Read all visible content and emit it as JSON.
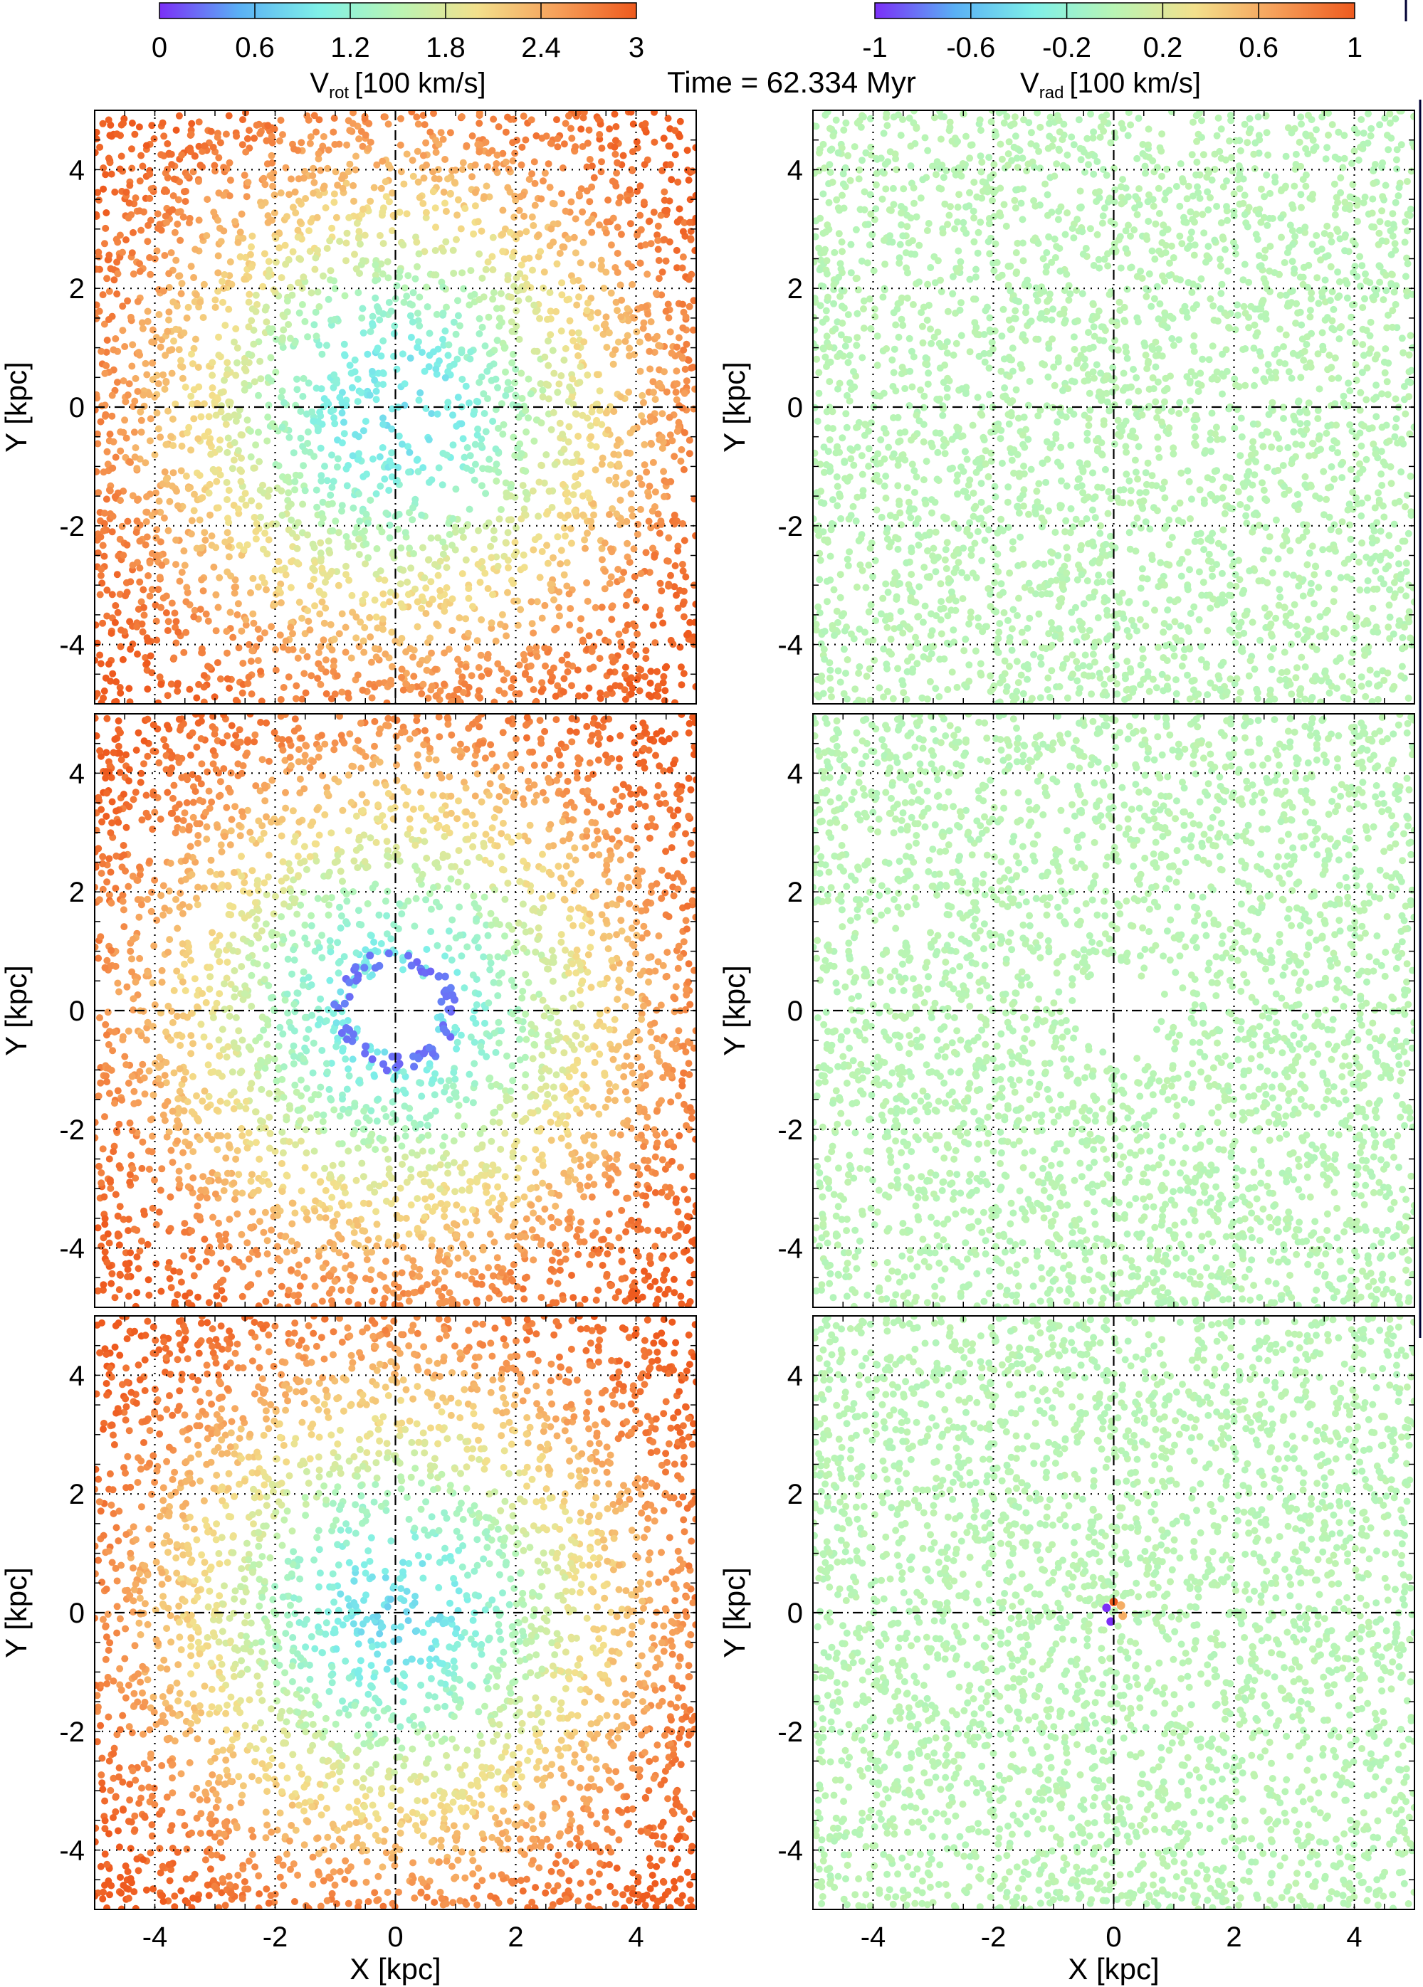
{
  "header": {
    "time_label": "Time = 62.334 Myr"
  },
  "colorbars": [
    {
      "label_main": "V",
      "label_sub": "rot",
      "label_unit": "[100 km/s]",
      "min": 0,
      "max": 3,
      "ticks": [
        "0",
        "0.6",
        "1.2",
        "1.8",
        "2.4",
        "3"
      ],
      "colors": [
        "#7b2ff7",
        "#5ab0f5",
        "#7ff0e8",
        "#b9f5b4",
        "#f3e08c",
        "#f6a05a",
        "#ee5a1e"
      ]
    },
    {
      "label_main": "V",
      "label_sub": "rad",
      "label_unit": "[100 km/s]",
      "min": -1,
      "max": 1,
      "ticks": [
        "-1",
        "-0.6",
        "-0.2",
        "0.2",
        "0.6",
        "1"
      ],
      "colors": [
        "#7b2ff7",
        "#5ab0f5",
        "#7ff0e8",
        "#b9f5b4",
        "#f3e08c",
        "#f6a05a",
        "#ee5a1e"
      ]
    }
  ],
  "axes": {
    "xlabel": "X [kpc]",
    "ylabel": "Y [kpc]",
    "xlim": [
      -5,
      5
    ],
    "ylim": [
      -5,
      5
    ],
    "xticks": [
      "-4",
      "-2",
      "0",
      "2",
      "4"
    ],
    "yticks": [
      "4",
      "2",
      "0",
      "-2",
      "-4"
    ],
    "grid": true
  },
  "chart_data": [
    {
      "type": "scatter",
      "panel": "row1-left",
      "quantity": "Vrot",
      "x_range": [
        -5,
        5
      ],
      "y_range": [
        -5,
        5
      ],
      "description_values": {
        "radius_kpc": [
          0,
          1,
          2,
          3,
          4,
          5,
          6.5
        ],
        "vrot_100kms": [
          0.9,
          1.0,
          1.4,
          1.9,
          2.3,
          2.7,
          3.0
        ]
      }
    },
    {
      "type": "scatter",
      "panel": "row1-right",
      "quantity": "Vrad",
      "x_range": [
        -5,
        5
      ],
      "y_range": [
        -5,
        5
      ],
      "description_values": {
        "vrad_100kms_typical": 0.0
      }
    },
    {
      "type": "scatter",
      "panel": "row2-left",
      "quantity": "Vrot",
      "x_range": [
        -5,
        5
      ],
      "y_range": [
        -5,
        5
      ],
      "description_values": {
        "empty_radius_kpc": 0.7,
        "ring_radius_kpc": 0.9,
        "ring_vrot_100kms": 0.2
      }
    },
    {
      "type": "scatter",
      "panel": "row2-right",
      "quantity": "Vrad",
      "x_range": [
        -5,
        5
      ],
      "y_range": [
        -5,
        5
      ],
      "description_values": {
        "empty_radius_kpc": 0.7,
        "vrad_100kms_typical": 0.0
      }
    },
    {
      "type": "scatter",
      "panel": "row3-left",
      "quantity": "Vrot",
      "x_range": [
        -5,
        5
      ],
      "y_range": [
        -5,
        5
      ],
      "description_values": {
        "radius_kpc": [
          0,
          1,
          2,
          3,
          4,
          5,
          6.5
        ],
        "vrot_100kms": [
          0.8,
          1.0,
          1.4,
          1.9,
          2.3,
          2.7,
          3.0
        ]
      }
    },
    {
      "type": "scatter",
      "panel": "row3-right",
      "quantity": "Vrad",
      "x_range": [
        -5,
        5
      ],
      "y_range": [
        -5,
        5
      ],
      "description_values": {
        "vrad_100kms_typical": 0.0,
        "center_feature_vrad": [
          -1,
          0.6,
          1
        ]
      }
    }
  ]
}
